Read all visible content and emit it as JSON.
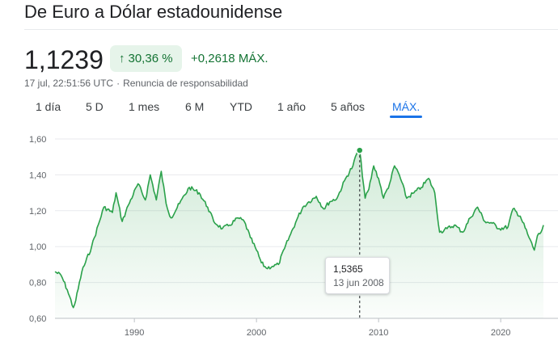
{
  "header": {
    "title": "De Euro a Dólar estadounidense"
  },
  "quote": {
    "price": "1,1239",
    "change_percent": "30,36 %",
    "change_abs": "+0,2618",
    "period_label": "MÁX.",
    "timestamp": "17 jul, 22:51:56 UTC",
    "disclaimer": "Renuncia de responsabilidad",
    "up_icon": "arrow-up-icon"
  },
  "tabs": [
    {
      "label": "1 día"
    },
    {
      "label": "5 D"
    },
    {
      "label": "1 mes"
    },
    {
      "label": "6 M"
    },
    {
      "label": "YTD"
    },
    {
      "label": "1 año"
    },
    {
      "label": "5 años"
    },
    {
      "label": "MÁX.",
      "active": true
    }
  ],
  "tooltip": {
    "value": "1,5365",
    "date": "13 jun 2008"
  },
  "colors": {
    "line": "#2aa14a",
    "positive": "#137333",
    "accent": "#1a73e8"
  },
  "chart_data": {
    "type": "area",
    "x_unit": "year",
    "ylim": [
      0.6,
      1.6
    ],
    "y_ticks": [
      "1,60",
      "1,40",
      "1,20",
      "1,00",
      "0,80",
      "0,60"
    ],
    "x_ticks": [
      "1990",
      "2000",
      "2010",
      "2020"
    ],
    "grid": true,
    "legend": "none",
    "series": [
      {
        "x": [
          1983.5,
          1984.0,
          1984.5,
          1985.0,
          1985.2,
          1985.7,
          1986.5,
          1987.5,
          1988.2,
          1988.5,
          1989.0,
          1989.5,
          1990.3,
          1990.9,
          1991.3,
          1991.8,
          1992.2,
          1992.6,
          1993.0,
          1993.7,
          1994.5,
          1995.3,
          1996.0,
          1996.5,
          1997.2,
          1997.8,
          1998.5,
          1999.0,
          1999.5,
          2000.0,
          2000.4,
          2000.8,
          2001.3,
          2001.8,
          2002.3,
          2002.8,
          2003.3,
          2003.8,
          2004.3,
          2004.9,
          2005.5,
          2006.0,
          2006.6,
          2007.3,
          2007.9,
          2008.3,
          2008.45,
          2008.9,
          2009.2,
          2009.6,
          2010.0,
          2010.4,
          2010.9,
          2011.3,
          2011.7,
          2012.3,
          2012.9,
          2013.5,
          2014.1,
          2014.6,
          2015.0,
          2015.6,
          2016.2,
          2016.9,
          2017.5,
          2018.1,
          2018.7,
          2019.3,
          2019.9,
          2020.6,
          2021.0,
          2021.6,
          2022.2,
          2022.75,
          2023.0,
          2023.3,
          2023.5
        ],
        "y": [
          0.86,
          0.84,
          0.76,
          0.66,
          0.7,
          0.86,
          1.0,
          1.22,
          1.19,
          1.3,
          1.14,
          1.23,
          1.35,
          1.26,
          1.4,
          1.26,
          1.42,
          1.24,
          1.16,
          1.24,
          1.33,
          1.3,
          1.22,
          1.14,
          1.1,
          1.12,
          1.16,
          1.14,
          1.05,
          0.98,
          0.91,
          0.88,
          0.89,
          0.9,
          0.99,
          1.07,
          1.15,
          1.22,
          1.25,
          1.28,
          1.21,
          1.25,
          1.27,
          1.38,
          1.45,
          1.54,
          1.5365,
          1.27,
          1.32,
          1.45,
          1.38,
          1.27,
          1.35,
          1.45,
          1.4,
          1.27,
          1.3,
          1.33,
          1.38,
          1.3,
          1.08,
          1.1,
          1.12,
          1.08,
          1.16,
          1.22,
          1.14,
          1.13,
          1.1,
          1.11,
          1.21,
          1.17,
          1.07,
          0.98,
          1.06,
          1.08,
          1.12
        ]
      }
    ]
  }
}
